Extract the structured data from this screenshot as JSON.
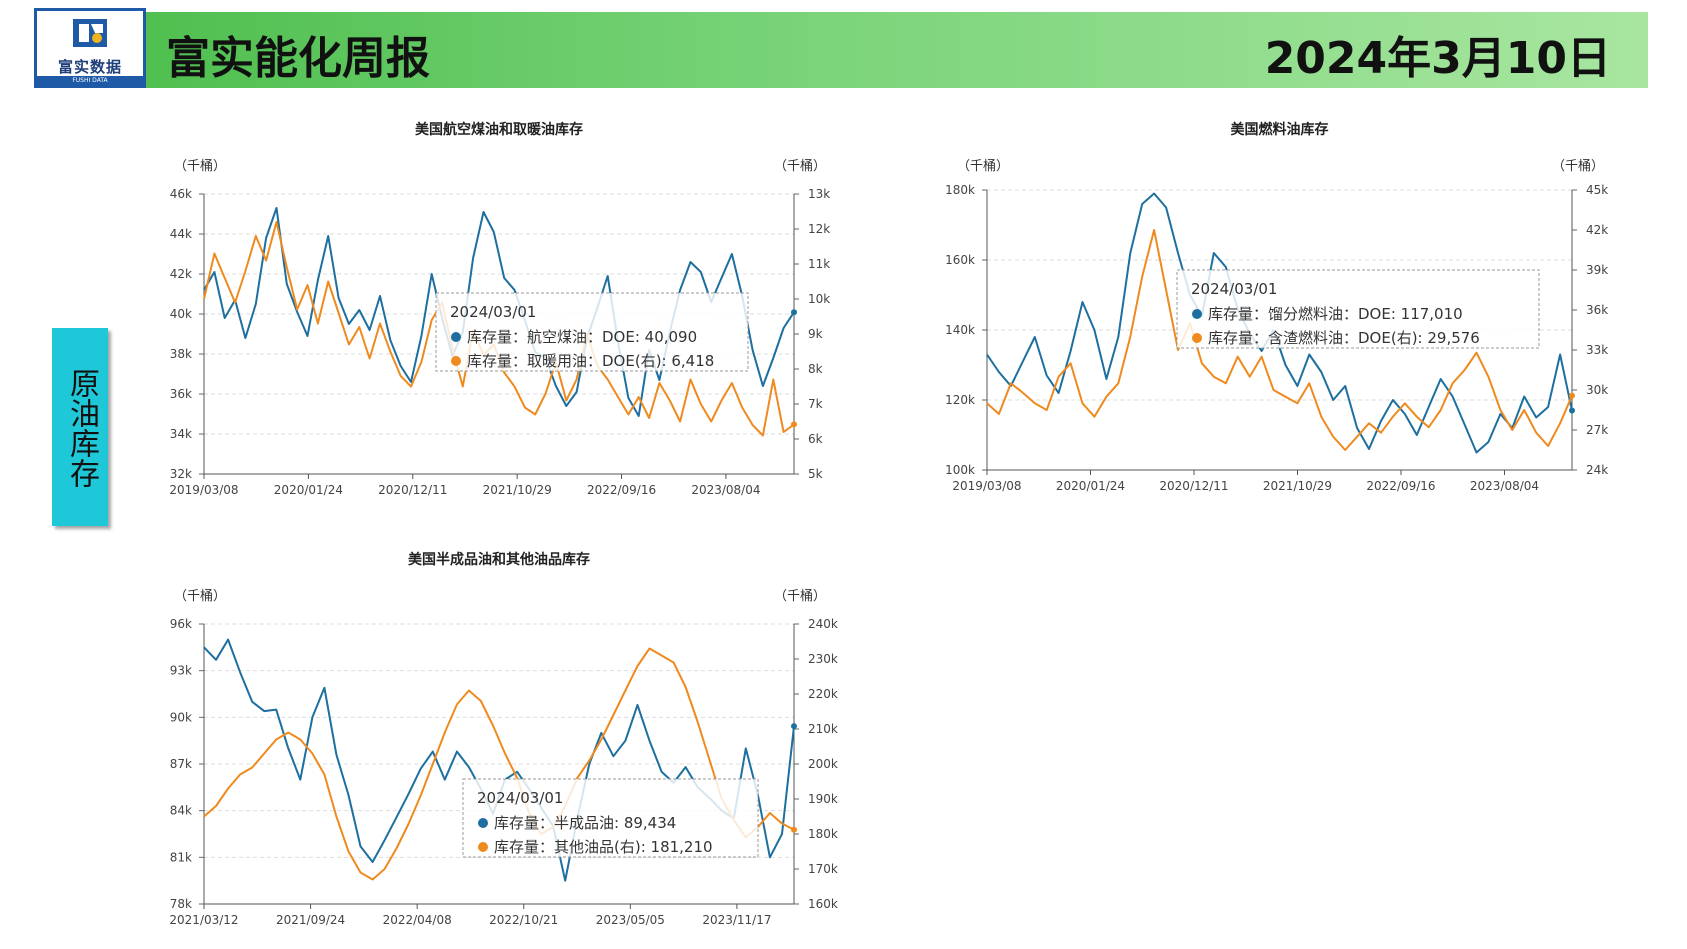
{
  "header": {
    "title": "富实能化周报",
    "date": "2024年3月10日",
    "logo_text": "富实数据",
    "logo_sub": "FUSHI DATA",
    "accent": "#4fbf4f",
    "logo_color": "#1f5aa6"
  },
  "side_tag": {
    "text": "原油库存",
    "color": "#1fc8d8"
  },
  "colors": {
    "series1": "#1d6fa0",
    "series2": "#ef8a1f",
    "grid": "#dddddd"
  },
  "chart_data": [
    {
      "type": "line",
      "title": "美国航空煤油和取暖油库存",
      "left_unit": "（千桶）",
      "right_unit": "（千桶）",
      "x_ticks": [
        "2019/03/08",
        "2020/01/24",
        "2020/12/11",
        "2021/10/29",
        "2022/09/16",
        "2023/08/04"
      ],
      "x_range": [
        "2019/03/08",
        "2024/03/01"
      ],
      "ylim_left": [
        32000,
        46000
      ],
      "ylim_right": [
        5000,
        13000
      ],
      "y_ticks_left": [
        "32k",
        "34k",
        "36k",
        "38k",
        "40k",
        "42k",
        "44k",
        "46k"
      ],
      "y_ticks_right": [
        "5k",
        "6k",
        "7k",
        "8k",
        "9k",
        "10k",
        "11k",
        "12k",
        "13k"
      ],
      "series": [
        {
          "name": "库存量：航空煤油：DOE",
          "axis": "left",
          "values": [
            41200,
            42100,
            39800,
            40700,
            38800,
            40500,
            43800,
            45300,
            41500,
            40100,
            38900,
            41700,
            43900,
            40800,
            39500,
            40200,
            39200,
            40900,
            38700,
            37400,
            36600,
            38900,
            42000,
            39800,
            37900,
            39100,
            42800,
            45100,
            44100,
            41800,
            41200,
            39700,
            38100,
            37800,
            36400,
            35400,
            36100,
            38800,
            40300,
            41900,
            38600,
            35800,
            34900,
            38200,
            36700,
            39100,
            41200,
            42600,
            42100,
            40600,
            41800,
            43000,
            40900,
            38200,
            36400,
            37800,
            39300,
            40090
          ]
        },
        {
          "name": "库存量：取暖用油：DOE(右)",
          "axis": "right",
          "values": [
            10000,
            11300,
            10600,
            9900,
            10800,
            11800,
            11100,
            12200,
            10900,
            9700,
            10400,
            9300,
            10500,
            9600,
            8700,
            9200,
            8300,
            9300,
            8500,
            7800,
            7500,
            8200,
            9400,
            9900,
            8600,
            7500,
            9100,
            8400,
            8700,
            7900,
            7500,
            6900,
            6700,
            7300,
            8200,
            7100,
            7700,
            9000,
            8100,
            7700,
            7200,
            6700,
            7200,
            6600,
            7600,
            7100,
            6500,
            7700,
            7000,
            6500,
            7100,
            7600,
            6900,
            6400,
            6100,
            7700,
            6200,
            6418
          ]
        }
      ],
      "tooltip": {
        "date": "2024/03/01",
        "rows": [
          {
            "label": "库存量：航空煤油：DOE: 40,090"
          },
          {
            "label": "库存量：取暖用油：DOE(右): 6,418"
          }
        ]
      }
    },
    {
      "type": "line",
      "title": "美国燃料油库存",
      "left_unit": "（千桶）",
      "right_unit": "（千桶）",
      "x_ticks": [
        "2019/03/08",
        "2020/01/24",
        "2020/12/11",
        "2021/10/29",
        "2022/09/16",
        "2023/08/04"
      ],
      "x_range": [
        "2019/03/08",
        "2024/03/01"
      ],
      "ylim_left": [
        100000,
        180000
      ],
      "ylim_right": [
        24000,
        45000
      ],
      "y_ticks_left": [
        "100k",
        "120k",
        "140k",
        "160k",
        "180k"
      ],
      "y_ticks_right": [
        "24k",
        "27k",
        "30k",
        "33k",
        "36k",
        "39k",
        "42k",
        "45k"
      ],
      "series": [
        {
          "name": "库存量：馏分燃料油：DOE",
          "axis": "left",
          "values": [
            133000,
            128000,
            124000,
            131000,
            138000,
            127000,
            122000,
            134000,
            148000,
            140000,
            126000,
            138000,
            162000,
            176000,
            179000,
            175000,
            162000,
            150000,
            144000,
            162000,
            158000,
            146000,
            139000,
            134000,
            140000,
            130000,
            124000,
            133000,
            128000,
            120000,
            124000,
            112000,
            106000,
            114000,
            120000,
            116000,
            110000,
            118000,
            126000,
            121000,
            113000,
            105000,
            108000,
            116000,
            112000,
            121000,
            115000,
            118000,
            133000,
            117010
          ]
        },
        {
          "name": "库存量：含渣燃料油：DOE(右)",
          "axis": "right",
          "values": [
            29000,
            28200,
            30500,
            29800,
            29000,
            28500,
            31000,
            32000,
            29000,
            28000,
            29500,
            30500,
            34000,
            38500,
            42000,
            37500,
            33000,
            35000,
            32000,
            31000,
            30500,
            32500,
            31000,
            32500,
            30000,
            29500,
            29000,
            30500,
            28000,
            26500,
            25500,
            26500,
            27500,
            26800,
            28000,
            29000,
            28000,
            27200,
            28500,
            30500,
            31500,
            32800,
            31000,
            28500,
            27000,
            28500,
            26800,
            25800,
            27500,
            29576
          ]
        }
      ],
      "tooltip": {
        "date": "2024/03/01",
        "rows": [
          {
            "label": "库存量：馏分燃料油：DOE: 117,010"
          },
          {
            "label": "库存量：含渣燃料油：DOE(右): 29,576"
          }
        ]
      }
    },
    {
      "type": "line",
      "title": "美国半成品油和其他油品库存",
      "left_unit": "（千桶）",
      "right_unit": "（千桶）",
      "x_ticks": [
        "2021/03/12",
        "2021/09/24",
        "2022/04/08",
        "2022/10/21",
        "2023/05/05",
        "2023/11/17"
      ],
      "x_range": [
        "2021/03/12",
        "2024/03/01"
      ],
      "ylim_left": [
        78000,
        96000
      ],
      "ylim_right": [
        160000,
        240000
      ],
      "y_ticks_left": [
        "78k",
        "81k",
        "84k",
        "87k",
        "90k",
        "93k",
        "96k"
      ],
      "y_ticks_right": [
        "160k",
        "170k",
        "180k",
        "190k",
        "200k",
        "210k",
        "220k",
        "230k",
        "240k"
      ],
      "series": [
        {
          "name": "库存量：半成品油",
          "axis": "left",
          "values": [
            94500,
            93700,
            95000,
            92900,
            91000,
            90400,
            90500,
            88000,
            86000,
            90000,
            91900,
            87600,
            85000,
            81700,
            80700,
            82100,
            83600,
            85100,
            86700,
            87800,
            86000,
            87800,
            86800,
            85400,
            83800,
            86000,
            86500,
            85400,
            84200,
            83000,
            79500,
            83500,
            87000,
            89000,
            87500,
            88500,
            90800,
            88500,
            86500,
            85800,
            86800,
            85500,
            84800,
            84000,
            83500,
            88000,
            85000,
            81000,
            82500,
            89434
          ]
        },
        {
          "name": "库存量：其他油品(右)",
          "axis": "right",
          "values": [
            185000,
            188000,
            193000,
            197000,
            199000,
            203000,
            207000,
            209000,
            207000,
            203000,
            197000,
            185000,
            175000,
            169000,
            167000,
            170000,
            176000,
            183000,
            191000,
            200000,
            209000,
            217000,
            221000,
            218000,
            211000,
            203000,
            196000,
            186000,
            180000,
            182000,
            188000,
            196000,
            201000,
            207000,
            214000,
            221000,
            228000,
            233000,
            231000,
            229000,
            222000,
            212000,
            201000,
            190000,
            184000,
            179000,
            182000,
            186000,
            183000,
            181210
          ]
        }
      ],
      "tooltip": {
        "date": "2024/03/01",
        "rows": [
          {
            "label": "库存量：半成品油: 89,434"
          },
          {
            "label": "库存量：其他油品(右): 181,210"
          }
        ]
      }
    }
  ]
}
